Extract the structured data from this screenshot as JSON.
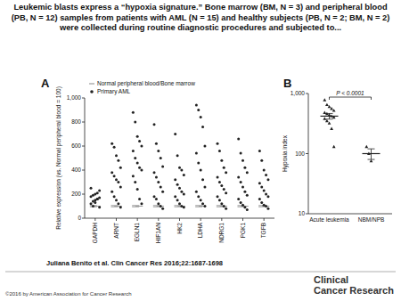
{
  "title": "Leukemic blasts express a “hypoxia signature.” Bone marrow (BM, N = 3) and peripheral blood (PB, N = 12) samples from patients with AML (N = 15) and healthy subjects (PB, N = 2; BM, N = 2) were collected during routine diagnostic procedures and subjected to...",
  "citation": "Juliana Benito et al. Clin Cancer Res 2016;22:1687-1698",
  "copyright": "©2016 by American Association for Cancer Research",
  "journal": [
    "Clinical",
    "Cancer Research"
  ],
  "chart_data": [
    {
      "type": "scatter",
      "title": "A",
      "categories": [
        "GAPDH",
        "ARNT",
        "EGLN1",
        "HIF1AN",
        "HK2",
        "LDHA",
        "NDRG1",
        "PGK1",
        "TGFB"
      ],
      "y_label": "Relative expression (vs. Normal peripheral blood = 100)",
      "ylim": [
        0,
        1000
      ],
      "yticks": [
        0,
        200,
        400,
        600,
        800,
        {
          "value": 1000,
          "label": "1,000"
        }
      ],
      "legend": "upper left",
      "series": [
        {
          "name": "Normal peripheral blood/Bone marrow",
          "color": "#9a9a9a",
          "marker": "dash",
          "values": [
            [
              95,
              100,
              105,
              100
            ],
            [
              95,
              100,
              105,
              100
            ],
            [
              95,
              100,
              105,
              100
            ],
            [
              95,
              100,
              105,
              100
            ],
            [
              95,
              100,
              105,
              100
            ],
            [
              95,
              100,
              105,
              100
            ],
            [
              95,
              100,
              105,
              100
            ],
            [
              95,
              100,
              105,
              100
            ],
            [
              95,
              100,
              105,
              100
            ]
          ]
        },
        {
          "name": "Primary AML",
          "color": "#222222",
          "marker": "circle",
          "values": [
            [
              120,
              140,
              150,
              160,
              170,
              180,
              190,
              200,
              210,
              230,
              250,
              100,
              130,
              160,
              90
            ],
            [
              620,
              590,
              520,
              480,
              420,
              380,
              350,
              320,
              300,
              260,
              220,
              180,
              150,
              120,
              90
            ],
            [
              880,
              800,
              680,
              640,
              600,
              560,
              500,
              460,
              420,
              400,
              350,
              300,
              240,
              160,
              120
            ],
            [
              780,
              620,
              560,
              500,
              430,
              380,
              340,
              300,
              260,
              220,
              180,
              160,
              120,
              100,
              80
            ],
            [
              700,
              520,
              420,
              400,
              360,
              320,
              280,
              250,
              220,
              200,
              180,
              150,
              120,
              100,
              90
            ],
            [
              940,
              900,
              840,
              760,
              600,
              540,
              460,
              400,
              320,
              260,
              220,
              180,
              150,
              120,
              100
            ],
            [
              620,
              560,
              480,
              420,
              380,
              340,
              300,
              270,
              240,
              210,
              180,
              150,
              120,
              100,
              80
            ],
            [
              660,
              540,
              480,
              420,
              380,
              340,
              300,
              260,
              220,
              190,
              160,
              130,
              110,
              90,
              70
            ],
            [
              560,
              480,
              400,
              360,
              320,
              290,
              260,
              230,
              200,
              180,
              160,
              130,
              110,
              100,
              80
            ]
          ]
        }
      ]
    },
    {
      "type": "scatter",
      "title": "B",
      "categories": [
        "Acute leukemia",
        "NBM/NPB"
      ],
      "y_label": "Hypoxia index",
      "log": "y",
      "ylim": [
        10,
        1000
      ],
      "yticks": [
        10,
        100,
        {
          "value": 1000,
          "label": "1,000"
        }
      ],
      "color": "#222222",
      "marker": "triangle",
      "values": [
        [
          780,
          650,
          600,
          560,
          520,
          480,
          460,
          440,
          420,
          400,
          380,
          350,
          320,
          260,
          130
        ],
        [
          130,
          100,
          75
        ]
      ],
      "means": [
        420,
        100
      ],
      "errors": [
        45,
        20
      ],
      "annotation": "P < 0.0001"
    }
  ]
}
